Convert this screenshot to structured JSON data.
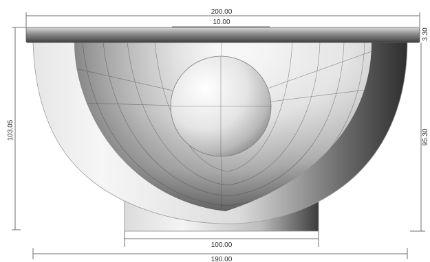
{
  "drawing": {
    "dimensions": {
      "top_total_width": "200.00",
      "top_inner_width": "10.00",
      "lid_thickness": "3.30",
      "left_total_height": "103.05",
      "right_height": "95.30",
      "base_width": "100.00",
      "bottom_width": "190.00"
    }
  }
}
